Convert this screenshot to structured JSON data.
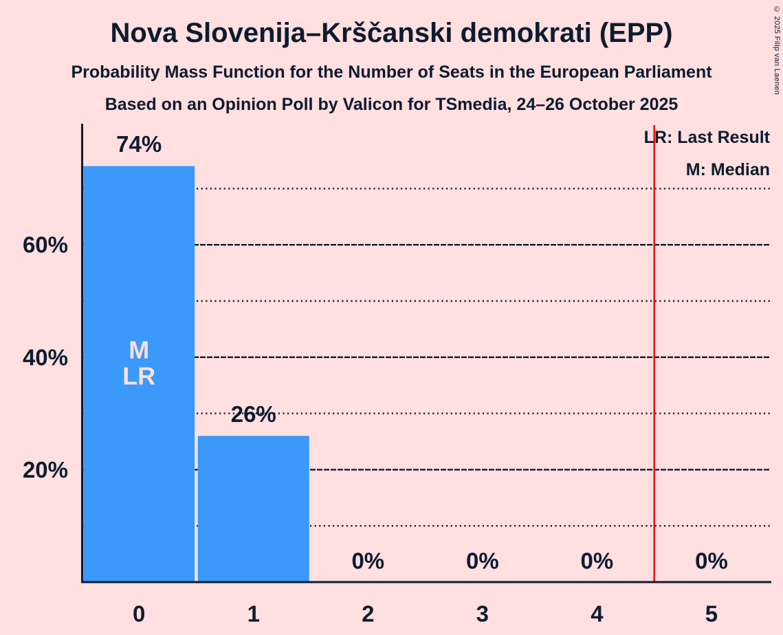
{
  "title": "Nova Slovenija–Krščanski demokrati (EPP)",
  "subtitle1": "Probability Mass Function for the Number of Seats in the European Parliament",
  "subtitle2": "Based on an Opinion Poll by Valicon for TSmedia, 24–26 October 2025",
  "copyright": "© 2025 Filip van Laenen",
  "legend": {
    "lr": "LR: Last Result",
    "m": "M: Median"
  },
  "colors": {
    "background": "#FFDFDF",
    "bar": "#3B99FA",
    "text": "#0E1B2F",
    "red_line": "#EE0505",
    "bar_annotation": "#FFDFDF"
  },
  "chart_data": {
    "type": "bar",
    "title": "Nova Slovenija–Krščanski demokrati (EPP)",
    "categories": [
      "0",
      "1",
      "2",
      "3",
      "4",
      "5"
    ],
    "values": [
      74,
      26,
      0,
      0,
      0,
      0
    ],
    "value_labels": [
      "74%",
      "26%",
      "0%",
      "0%",
      "0%",
      "0%"
    ],
    "ylim": [
      0,
      81
    ],
    "y_ticks": [
      {
        "value": 20,
        "label": "20%"
      },
      {
        "value": 40,
        "label": "40%"
      },
      {
        "value": 60,
        "label": "60%"
      }
    ],
    "gridlines": {
      "solid": [
        20,
        40,
        60
      ],
      "dotted": [
        10,
        30,
        50,
        70
      ]
    },
    "red_line_x": 4.5,
    "bar_annotations": {
      "category_index": 0,
      "lines": [
        "M",
        "LR"
      ]
    },
    "legend_position": "top-right",
    "median_seats": 0,
    "last_result_seats": 0
  }
}
